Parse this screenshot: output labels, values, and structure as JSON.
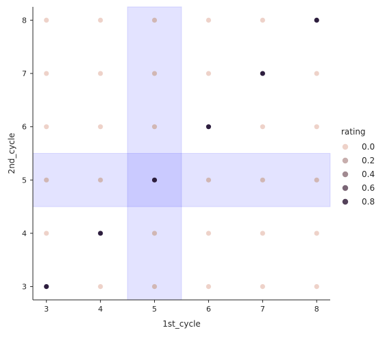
{
  "chart_data": {
    "type": "scatter",
    "xlabel": "1st_cycle",
    "ylabel": "2nd_cycle",
    "xlim": [
      2.75,
      8.25
    ],
    "ylim": [
      2.75,
      8.25
    ],
    "xticks": [
      3,
      4,
      5,
      6,
      7,
      8
    ],
    "yticks": [
      3,
      4,
      5,
      6,
      7,
      8
    ],
    "grid": false,
    "highlight_bands": [
      {
        "axis": "x",
        "from": 4.5,
        "to": 5.5,
        "color": "#0000ff",
        "opacity": 0.11
      },
      {
        "axis": "y",
        "from": 4.5,
        "to": 5.5,
        "color": "#0000ff",
        "opacity": 0.11
      }
    ],
    "legend": {
      "title": "rating",
      "placement": "right",
      "entries": [
        "0.0",
        "0.2",
        "0.4",
        "0.6",
        "0.8"
      ],
      "values": [
        0.0,
        0.2,
        0.4,
        0.6,
        0.8
      ]
    },
    "palette": {
      "low": "#eed2c9",
      "high": "#2d1e3e"
    },
    "points": [
      {
        "x": 3,
        "y": 3,
        "rating": 1.0
      },
      {
        "x": 4,
        "y": 3,
        "rating": 0.0
      },
      {
        "x": 5,
        "y": 3,
        "rating": 0.15
      },
      {
        "x": 6,
        "y": 3,
        "rating": 0.0
      },
      {
        "x": 7,
        "y": 3,
        "rating": 0.0
      },
      {
        "x": 8,
        "y": 3,
        "rating": 0.0
      },
      {
        "x": 3,
        "y": 4,
        "rating": 0.0
      },
      {
        "x": 4,
        "y": 4,
        "rating": 1.0
      },
      {
        "x": 5,
        "y": 4,
        "rating": 0.15
      },
      {
        "x": 6,
        "y": 4,
        "rating": 0.0
      },
      {
        "x": 7,
        "y": 4,
        "rating": 0.0
      },
      {
        "x": 8,
        "y": 4,
        "rating": 0.0
      },
      {
        "x": 3,
        "y": 5,
        "rating": 0.15
      },
      {
        "x": 4,
        "y": 5,
        "rating": 0.15
      },
      {
        "x": 5,
        "y": 5,
        "rating": 1.0
      },
      {
        "x": 6,
        "y": 5,
        "rating": 0.15
      },
      {
        "x": 7,
        "y": 5,
        "rating": 0.15
      },
      {
        "x": 8,
        "y": 5,
        "rating": 0.15
      },
      {
        "x": 3,
        "y": 6,
        "rating": 0.0
      },
      {
        "x": 4,
        "y": 6,
        "rating": 0.0
      },
      {
        "x": 5,
        "y": 6,
        "rating": 0.15
      },
      {
        "x": 6,
        "y": 6,
        "rating": 1.0
      },
      {
        "x": 7,
        "y": 6,
        "rating": 0.0
      },
      {
        "x": 8,
        "y": 6,
        "rating": 0.0
      },
      {
        "x": 3,
        "y": 7,
        "rating": 0.0
      },
      {
        "x": 4,
        "y": 7,
        "rating": 0.0
      },
      {
        "x": 5,
        "y": 7,
        "rating": 0.15
      },
      {
        "x": 6,
        "y": 7,
        "rating": 0.0
      },
      {
        "x": 7,
        "y": 7,
        "rating": 1.0
      },
      {
        "x": 8,
        "y": 7,
        "rating": 0.0
      },
      {
        "x": 3,
        "y": 8,
        "rating": 0.0
      },
      {
        "x": 4,
        "y": 8,
        "rating": 0.0
      },
      {
        "x": 5,
        "y": 8,
        "rating": 0.15
      },
      {
        "x": 6,
        "y": 8,
        "rating": 0.0
      },
      {
        "x": 7,
        "y": 8,
        "rating": 0.0
      },
      {
        "x": 8,
        "y": 8,
        "rating": 1.0
      }
    ]
  }
}
